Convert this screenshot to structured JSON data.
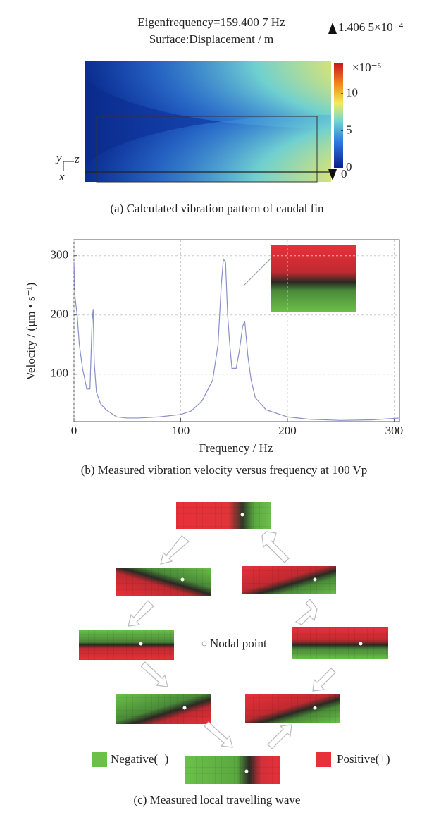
{
  "chart_data": [
    {
      "type": "heatmap",
      "title": "Eigenfrequency=159.400 7 Hz",
      "subtitle": "Surface:Displacement / m",
      "max_label": "1.406 5×10⁻⁴",
      "min_label": "0",
      "colorbar_multiplier": "×10⁻⁵",
      "clim": [
        0,
        14.065
      ],
      "cticks": [
        0,
        5,
        10
      ],
      "axis_labels": {
        "y": "y",
        "z": "z",
        "x": "x"
      },
      "caption": "(a) Calculated vibration pattern of caudal fin"
    },
    {
      "type": "line",
      "xlabel": "Frequency / Hz",
      "ylabel": "Velocity / (μm • s⁻¹)",
      "caption": "(b) Measured vibration velocity versus frequency at 100 Vp",
      "color": "#8a90c8",
      "grid": true,
      "xlim": [
        0,
        305
      ],
      "ylim": [
        20,
        327
      ],
      "xticks": [
        0,
        100,
        200,
        300
      ],
      "yticks": [
        100,
        200,
        300
      ],
      "x": [
        0,
        1,
        3,
        5,
        8,
        12,
        15,
        17,
        18,
        19,
        21,
        25,
        30,
        40,
        50,
        60,
        80,
        100,
        110,
        120,
        130,
        135,
        138,
        140,
        142,
        144,
        146,
        148,
        152,
        155,
        158,
        160,
        163,
        166,
        170,
        180,
        200,
        220,
        250,
        280,
        305
      ],
      "values": [
        290,
        230,
        200,
        150,
        110,
        75,
        75,
        190,
        210,
        120,
        70,
        50,
        40,
        28,
        26,
        26,
        28,
        32,
        38,
        55,
        90,
        150,
        250,
        294,
        290,
        200,
        150,
        110,
        110,
        140,
        180,
        190,
        130,
        90,
        60,
        40,
        28,
        24,
        22,
        23,
        26
      ]
    }
  ],
  "diagram": {
    "nodal_label": "Nodal point",
    "legend": [
      {
        "label": "Negative(−)",
        "color": "#6cc04a"
      },
      {
        "label": "Positive(+)",
        "color": "#e8303a"
      }
    ],
    "caption": "(c)  Measured local travelling wave"
  }
}
